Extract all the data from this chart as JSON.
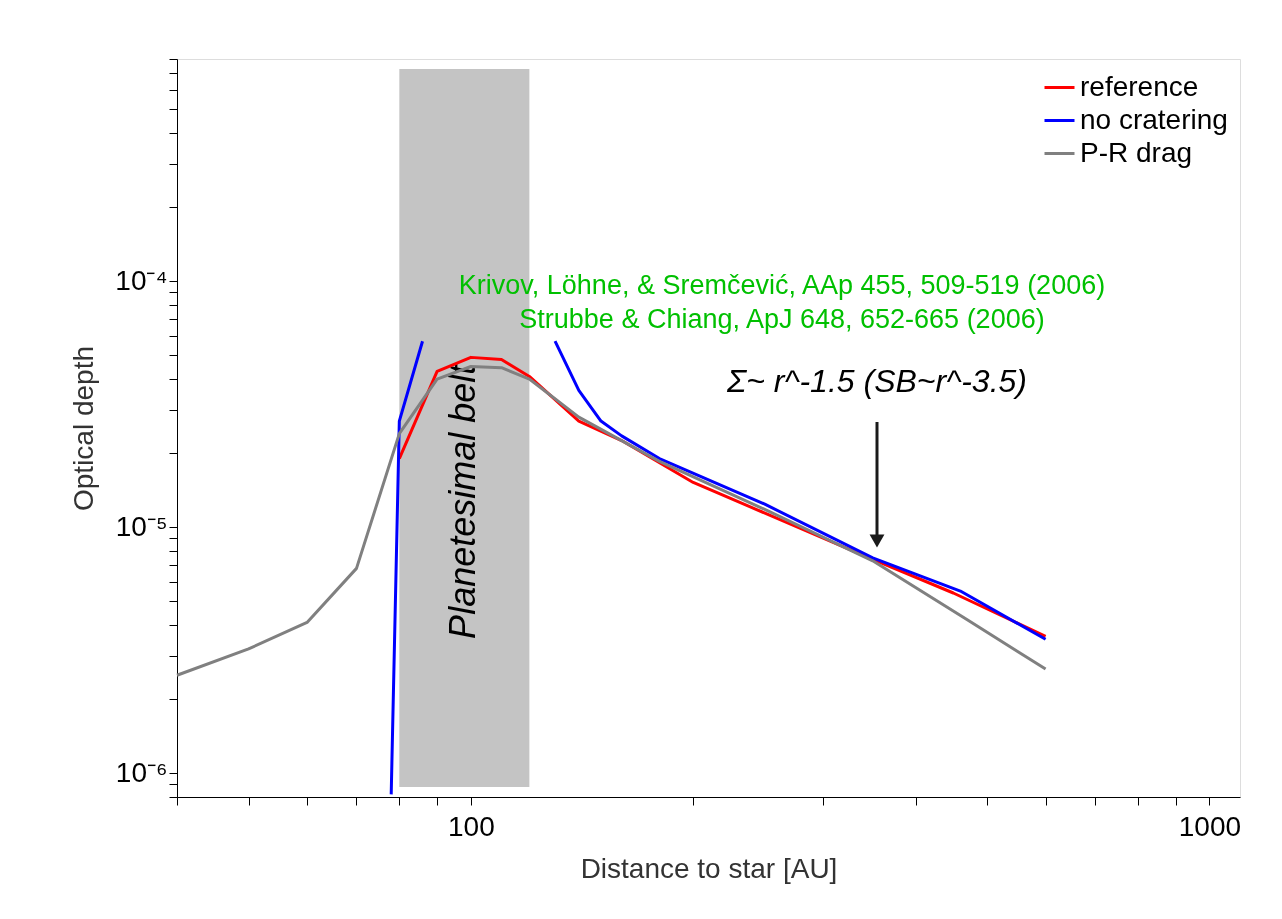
{
  "chart_data": {
    "type": "line",
    "xlabel": "Distance to star [AU]",
    "ylabel": "Optical depth",
    "log": "xy",
    "grid": false,
    "legend": "top right",
    "marker": "none",
    "line_style": "solid",
    "xlim": [
      40,
      1100
    ],
    "ylim": [
      8e-07,
      0.0008
    ],
    "xticks": [
      {
        "value": 40,
        "label": null
      },
      {
        "value": 50,
        "label": null
      },
      {
        "value": 60,
        "label": null
      },
      {
        "value": 70,
        "label": null
      },
      {
        "value": 80,
        "label": null
      },
      {
        "value": 90,
        "label": null
      },
      100,
      {
        "value": 200,
        "label": null
      },
      {
        "value": 300,
        "label": null
      },
      {
        "value": 400,
        "label": null
      },
      {
        "value": 500,
        "label": null
      },
      {
        "value": 600,
        "label": null
      },
      {
        "value": 700,
        "label": null
      },
      {
        "value": 800,
        "label": null
      },
      {
        "value": 900,
        "label": null
      },
      1000
    ],
    "yticks": [
      {
        "value": 8e-07,
        "label": null
      },
      {
        "value": 9e-07,
        "label": null
      },
      {
        "value": 1e-06,
        "label": "10⁻⁶"
      },
      {
        "value": 2e-06,
        "label": null
      },
      {
        "value": 3e-06,
        "label": null
      },
      {
        "value": 4e-06,
        "label": null
      },
      {
        "value": 5e-06,
        "label": null
      },
      {
        "value": 6e-06,
        "label": null
      },
      {
        "value": 7e-06,
        "label": null
      },
      {
        "value": 8e-06,
        "label": null
      },
      {
        "value": 9e-06,
        "label": null
      },
      {
        "value": 1e-05,
        "label": "10⁻⁵"
      },
      {
        "value": 2e-05,
        "label": null
      },
      {
        "value": 3e-05,
        "label": null
      },
      {
        "value": 4e-05,
        "label": null
      },
      {
        "value": 5e-05,
        "label": null
      },
      {
        "value": 6e-05,
        "label": null
      },
      {
        "value": 7e-05,
        "label": null
      },
      {
        "value": 8e-05,
        "label": null
      },
      {
        "value": 9e-05,
        "label": null
      },
      {
        "value": 0.0001,
        "label": "10⁻⁴"
      },
      {
        "value": 0.0002,
        "label": null
      },
      {
        "value": 0.0003,
        "label": null
      },
      {
        "value": 0.0004,
        "label": null
      },
      {
        "value": 0.0005,
        "label": null
      },
      {
        "value": 0.0006,
        "label": null
      },
      {
        "value": 0.0007,
        "label": null
      },
      {
        "value": 0.0008,
        "label": null
      }
    ],
    "bands": [
      {
        "axis": "x",
        "from": 80,
        "to": 120,
        "label": "Planetesimal belt",
        "color": "#c4c4c4"
      }
    ],
    "series": [
      {
        "name": "reference",
        "color": "#ff0000",
        "x": [
          80,
          90,
          100,
          110,
          120,
          140,
          160,
          200,
          350,
          450,
          600
        ],
        "values": [
          1.9e-05,
          4.3e-05,
          4.9e-05,
          4.8e-05,
          4.1e-05,
          2.7e-05,
          2.25e-05,
          1.52e-05,
          7.4e-06,
          5.4e-06,
          3.6e-06
        ]
      },
      {
        "name": "no cratering",
        "color": "#0000ff",
        "x": [
          78,
          80,
          86,
          100,
          130,
          140,
          150,
          160,
          180,
          250,
          350,
          460,
          600
        ],
        "values": [
          8.2e-07,
          2.7e-05,
          5.7e-05,
          null,
          5.7e-05,
          3.6e-05,
          2.7e-05,
          2.35e-05,
          1.9e-05,
          1.24e-05,
          7.5e-06,
          5.5e-06,
          3.5e-06
        ]
      },
      {
        "name": "P-R drag",
        "color": "#808080",
        "x": [
          40,
          50,
          60,
          70,
          80,
          90,
          100,
          110,
          120,
          140,
          180,
          250,
          350,
          470,
          600
        ],
        "values": [
          2.5e-06,
          3.2e-06,
          4.1e-06,
          6.8e-06,
          2.4e-05,
          4e-05,
          4.5e-05,
          4.45e-05,
          4e-05,
          2.8e-05,
          1.85e-05,
          1.18e-05,
          7.3e-06,
          4.2e-06,
          2.65e-06
        ]
      }
    ],
    "annotations": [
      "Krivov, Löhne, & Sremčević, AAp 455, 509-519 (2006)",
      "Strubbe & Chiang, ApJ 648, 652-665 (2006)",
      "Σ~ r^-1.5 (SB~r^-3.5)"
    ]
  }
}
